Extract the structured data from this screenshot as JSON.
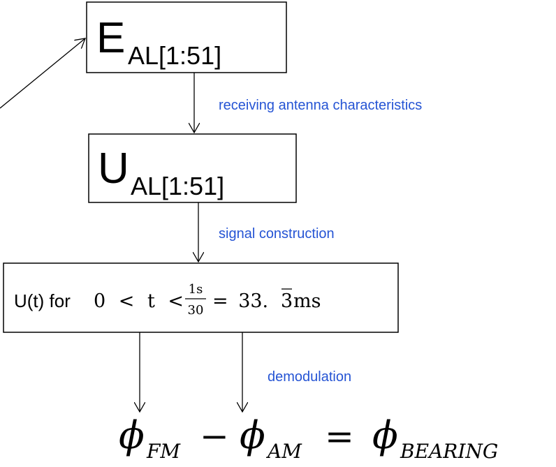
{
  "nodes": [
    {
      "label": "E",
      "subscript": "AL[1:51]"
    },
    {
      "label": "U",
      "subscript": "AL[1:51]"
    },
    {
      "label": "U(t) for",
      "condition": "0 < t <",
      "numerator": "1s",
      "denominator": "30",
      "equals": "= 33.",
      "repeating": "3",
      "unit": "ms"
    }
  ],
  "edges": [
    {
      "label": "receiving antenna characteristics"
    },
    {
      "label": "signal construction"
    },
    {
      "label": "demodulation"
    }
  ],
  "result": {
    "symbol": "ϕ",
    "term1": "FM",
    "minus": "−",
    "term2": "AM",
    "equals": "=",
    "term3": "BEARING"
  }
}
